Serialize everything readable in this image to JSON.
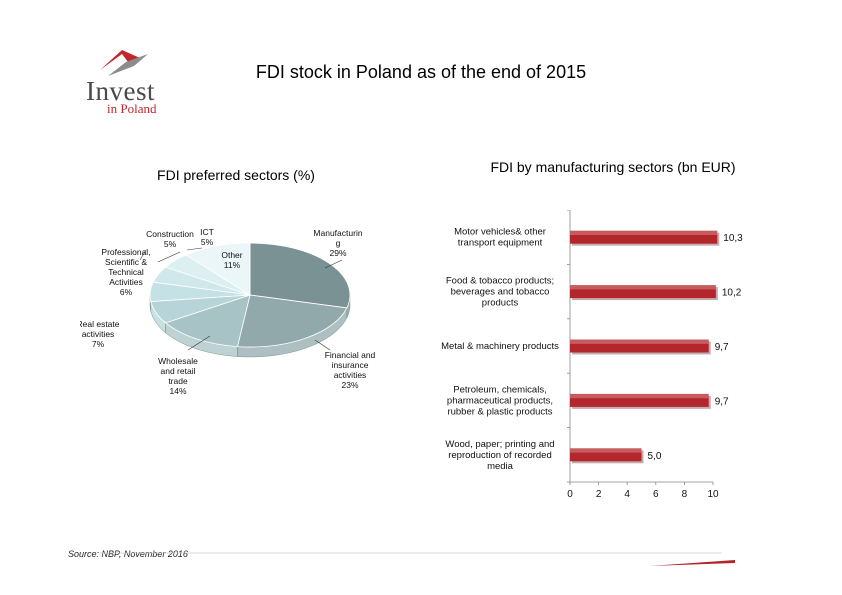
{
  "header": {
    "logo_word": "Invest",
    "logo_sub": "in Poland",
    "title": "FDI stock in Poland as of the end of 2015"
  },
  "chart_data": [
    {
      "type": "pie",
      "title": "FDI preferred sectors (%)",
      "unit": "%",
      "slices": [
        {
          "label": "Manufacturing",
          "value": 29,
          "color": "#7a9294"
        },
        {
          "label": "Financial and insurance activities",
          "value": 23,
          "color": "#92a9ab"
        },
        {
          "label": "Wholesale and retail trade",
          "value": 14,
          "color": "#a8c3c6"
        },
        {
          "label": "Real estate activities",
          "value": 7,
          "color": "#b7d5d9"
        },
        {
          "label": "Professional, Scientific & Technical Activities",
          "value": 6,
          "color": "#c4e1e6"
        },
        {
          "label": "Construction",
          "value": 5,
          "color": "#d0e8ec"
        },
        {
          "label": "ICT",
          "value": 5,
          "color": "#dcf0f2"
        },
        {
          "label": "Other",
          "value": 11,
          "color": "#ebf6f8"
        }
      ]
    },
    {
      "type": "bar",
      "orientation": "horizontal",
      "title": "FDI by manufacturing sectors (bn EUR)",
      "categories": [
        "Motor vehicles& other transport equipment",
        "Food & tobacco products; beverages and tobacco products",
        "Metal & machinery products",
        "Petroleum, chemicals, pharmaceutical products, rubber & plastic products",
        "Wood, paper; printing and reproduction of recorded media"
      ],
      "values": [
        10.3,
        10.2,
        9.7,
        9.7,
        5.0
      ],
      "value_labels": [
        "10,3",
        "10,2",
        "9,7",
        "9,7",
        "5,0"
      ],
      "xlim": [
        0,
        10
      ],
      "xticks": [
        "0",
        "2",
        "4",
        "6",
        "8",
        "10"
      ],
      "bar_color": "#b3262b"
    }
  ],
  "pie_labels": [
    {
      "id": "manufacturing",
      "lines": [
        "Manufacturin",
        "g",
        "29%"
      ]
    },
    {
      "id": "financial",
      "lines": [
        "Financial and",
        "insurance",
        "activities",
        "23%"
      ]
    },
    {
      "id": "wholesale",
      "lines": [
        "Wholesale",
        "and retail",
        "trade",
        "14%"
      ]
    },
    {
      "id": "realestate",
      "lines": [
        "Real estate",
        "activities",
        "7%"
      ]
    },
    {
      "id": "professional",
      "lines": [
        "Professional,",
        "Scientific &",
        "Technical",
        "Activities",
        "6%"
      ]
    },
    {
      "id": "construction",
      "lines": [
        "Construction",
        "5%"
      ]
    },
    {
      "id": "ict",
      "lines": [
        "ICT",
        "5%"
      ]
    },
    {
      "id": "other",
      "lines": [
        "Other",
        "11%"
      ]
    }
  ],
  "bar_labels": [
    [
      "Motor vehicles& other",
      "transport equipment"
    ],
    [
      "Food & tobacco products;",
      "beverages and tobacco",
      "products"
    ],
    [
      "Metal & machinery products"
    ],
    [
      "Petroleum, chemicals,",
      "pharmaceutical products,",
      "rubber & plastic products"
    ],
    [
      "Wood, paper; printing and",
      "reproduction of recorded",
      "media"
    ]
  ],
  "footer": {
    "source": "Source: NBP, November 2016",
    "accent_color": "#b3262b"
  }
}
